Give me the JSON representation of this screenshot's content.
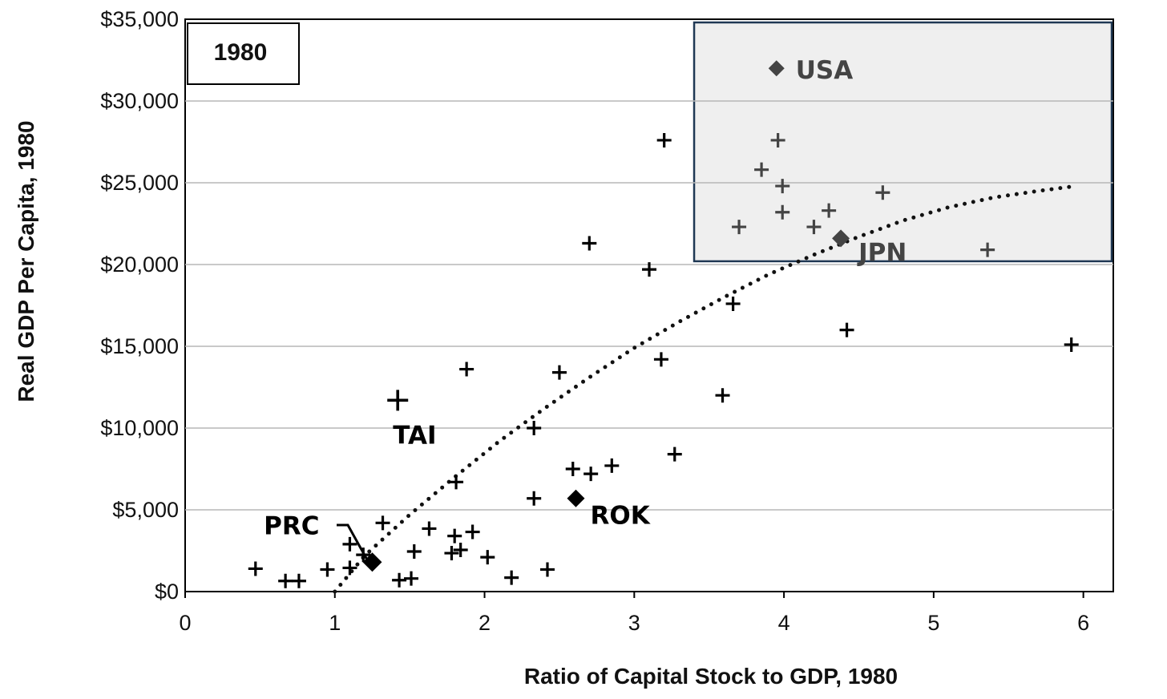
{
  "chart_data": {
    "type": "scatter",
    "title": "1980",
    "xlabel": "Ratio of Capital Stock to GDP, 1980",
    "ylabel": "Real GDP Per Capita, 1980",
    "xlim": [
      0,
      6.2
    ],
    "ylim": [
      0,
      35000
    ],
    "x_ticks": [
      "0",
      "1",
      "2",
      "3",
      "4",
      "5",
      "6"
    ],
    "y_ticks": [
      "$0",
      "$5,000",
      "$10,000",
      "$15,000",
      "$20,000",
      "$25,000",
      "$30,000",
      "$35,000"
    ],
    "grid": "horizontal",
    "highlight_region": {
      "x": [
        3.4,
        6.2
      ],
      "y": [
        20200,
        35000
      ]
    },
    "series": [
      {
        "marker": "plus",
        "points": [
          [
            0.47,
            1400
          ],
          [
            0.67,
            650
          ],
          [
            0.76,
            650
          ],
          [
            0.95,
            1350
          ],
          [
            1.1,
            2900
          ],
          [
            1.1,
            1450
          ],
          [
            1.19,
            2250
          ],
          [
            1.32,
            4200
          ],
          [
            1.43,
            700
          ],
          [
            1.51,
            800
          ],
          [
            1.53,
            2450
          ],
          [
            1.63,
            3850
          ],
          [
            1.78,
            2350
          ],
          [
            1.8,
            3400
          ],
          [
            1.84,
            2550
          ],
          [
            1.81,
            6700
          ],
          [
            1.92,
            3650
          ],
          [
            2.02,
            2100
          ],
          [
            2.18,
            850
          ],
          [
            2.42,
            1350
          ],
          [
            1.88,
            13600
          ],
          [
            2.33,
            5700
          ],
          [
            2.33,
            10000
          ],
          [
            2.5,
            13400
          ],
          [
            2.59,
            7500
          ],
          [
            2.71,
            7200
          ],
          [
            2.85,
            7700
          ],
          [
            2.7,
            21300
          ],
          [
            3.1,
            19700
          ],
          [
            3.2,
            27600
          ],
          [
            3.18,
            14200
          ],
          [
            3.27,
            8400
          ],
          [
            3.59,
            12000
          ],
          [
            3.66,
            17600
          ],
          [
            3.7,
            22300
          ],
          [
            3.85,
            25800
          ],
          [
            3.96,
            27600
          ],
          [
            3.99,
            24800
          ],
          [
            3.99,
            23200
          ],
          [
            4.2,
            22300
          ],
          [
            4.3,
            23300
          ],
          [
            4.42,
            16000
          ],
          [
            4.66,
            24400
          ],
          [
            5.36,
            20900
          ],
          [
            5.92,
            15100
          ]
        ]
      }
    ],
    "highlighted_countries": [
      {
        "label": "USA",
        "x": 3.95,
        "y": 32000
      },
      {
        "label": "JPN",
        "x": 4.38,
        "y": 21600
      },
      {
        "label": "TAI",
        "x": 1.42,
        "y": 11700
      },
      {
        "label": "ROK",
        "x": 2.61,
        "y": 5700
      },
      {
        "label": "PRC",
        "x": 1.25,
        "y": 1800
      }
    ],
    "trendline": {
      "style": "dotted",
      "points": [
        [
          1.0,
          0
        ],
        [
          1.2,
          2200
        ],
        [
          1.5,
          4700
        ],
        [
          1.8,
          7000
        ],
        [
          2.1,
          9200
        ],
        [
          2.4,
          11200
        ],
        [
          2.7,
          13100
        ],
        [
          3.0,
          14900
        ],
        [
          3.3,
          16500
        ],
        [
          3.6,
          18000
        ],
        [
          3.9,
          19400
        ],
        [
          4.2,
          20600
        ],
        [
          4.5,
          21700
        ],
        [
          4.8,
          22700
        ],
        [
          5.1,
          23500
        ],
        [
          5.4,
          24100
        ],
        [
          5.7,
          24500
        ],
        [
          5.95,
          24800
        ]
      ]
    }
  }
}
